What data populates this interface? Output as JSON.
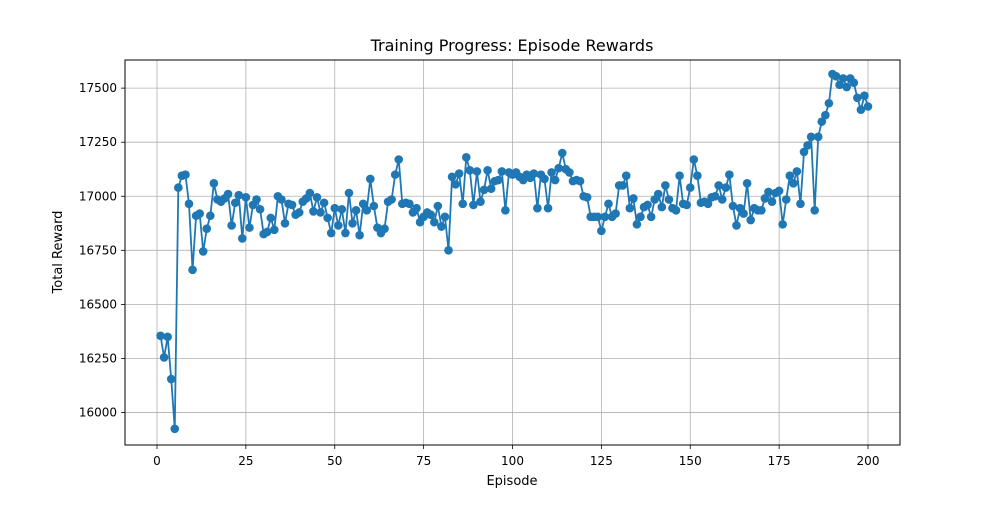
{
  "chart_data": {
    "type": "line",
    "title": "Training Progress: Episode Rewards",
    "xlabel": "Episode",
    "ylabel": "Total Reward",
    "xlim": [
      -9,
      209
    ],
    "ylim": [
      15850,
      17630
    ],
    "xticks": [
      0,
      25,
      50,
      75,
      100,
      125,
      150,
      175,
      200
    ],
    "yticks": [
      16000,
      16250,
      16500,
      16750,
      17000,
      17250,
      17500
    ],
    "grid": true,
    "line_color": "#1f77b4",
    "marker": "circle",
    "series": [
      {
        "x": [
          1,
          2,
          3,
          4,
          5,
          6,
          7,
          8,
          9,
          10,
          11,
          12,
          13,
          14,
          15,
          16,
          17,
          18,
          19,
          20,
          21,
          22,
          23,
          24,
          25,
          26,
          27,
          28,
          29,
          30,
          31,
          32,
          33,
          34,
          35,
          36,
          37,
          38,
          39,
          40,
          41,
          42,
          43,
          44,
          45,
          46,
          47,
          48,
          49,
          50,
          51,
          52,
          53,
          54,
          55,
          56,
          57,
          58,
          59,
          60,
          61,
          62,
          63,
          64,
          65,
          66,
          67,
          68,
          69,
          70,
          71,
          72,
          73,
          74,
          75,
          76,
          77,
          78,
          79,
          80,
          81,
          82,
          83,
          84,
          85,
          86,
          87,
          88,
          89,
          90,
          91,
          92,
          93,
          94,
          95,
          96,
          97,
          98,
          99,
          100,
          101,
          102,
          103,
          104,
          105,
          106,
          107,
          108,
          109,
          110,
          111,
          112,
          113,
          114,
          115,
          116,
          117,
          118,
          119,
          120,
          121,
          122,
          123,
          124,
          125,
          126,
          127,
          128,
          129,
          130,
          131,
          132,
          133,
          134,
          135,
          136,
          137,
          138,
          139,
          140,
          141,
          142,
          143,
          144,
          145,
          146,
          147,
          148,
          149,
          150,
          151,
          152,
          153,
          154,
          155,
          156,
          157,
          158,
          159,
          160,
          161,
          162,
          163,
          164,
          165,
          166,
          167,
          168,
          169,
          170,
          171,
          172,
          173,
          174,
          175,
          176,
          177,
          178,
          179,
          180,
          181,
          182,
          183,
          184,
          185,
          186,
          187,
          188,
          189,
          190,
          191,
          192,
          193,
          194,
          195,
          196,
          197,
          198,
          199,
          200
        ],
        "values": [
          16355,
          16255,
          16350,
          16155,
          15925,
          17040,
          17095,
          17100,
          16965,
          16660,
          16910,
          16920,
          16745,
          16850,
          16910,
          17060,
          16985,
          16975,
          16990,
          17010,
          16865,
          16970,
          17005,
          16805,
          16995,
          16855,
          16960,
          16985,
          16940,
          16825,
          16835,
          16900,
          16845,
          17000,
          16985,
          16875,
          16965,
          16960,
          16915,
          16925,
          16975,
          16990,
          17015,
          16930,
          16995,
          16925,
          16970,
          16900,
          16830,
          16945,
          16865,
          16940,
          16830,
          17015,
          16875,
          16935,
          16820,
          16965,
          16935,
          17080,
          16955,
          16855,
          16830,
          16850,
          16975,
          16985,
          17100,
          17170,
          16965,
          16970,
          16965,
          16925,
          16945,
          16880,
          16905,
          16925,
          16915,
          16880,
          16955,
          16860,
          16905,
          16750,
          17090,
          17055,
          17105,
          16965,
          17180,
          17120,
          16960,
          17115,
          16975,
          17030,
          17120,
          17035,
          17070,
          17075,
          17115,
          16935,
          17110,
          17100,
          17110,
          17090,
          17075,
          17100,
          17085,
          17105,
          16945,
          17100,
          17080,
          16945,
          17110,
          17075,
          17130,
          17200,
          17125,
          17110,
          17070,
          17075,
          17070,
          17000,
          16995,
          16905,
          16905,
          16905,
          16840,
          16905,
          16965,
          16905,
          16920,
          17050,
          17050,
          17095,
          16945,
          16990,
          16870,
          16905,
          16950,
          16960,
          16905,
          16985,
          17010,
          16950,
          17050,
          16985,
          16945,
          16935,
          17095,
          16965,
          16960,
          17040,
          17170,
          17095,
          16970,
          16975,
          16965,
          16995,
          17000,
          17050,
          16985,
          17040,
          17100,
          16955,
          16865,
          16945,
          16920,
          17060,
          16890,
          16945,
          16935,
          16935,
          16990,
          17020,
          16975,
          17015,
          17025,
          16870,
          16985,
          17095,
          17060,
          17115,
          16965,
          17205,
          17235,
          17275,
          16935,
          17275,
          17345,
          17375,
          17430,
          17565,
          17555,
          17515,
          17545,
          17505,
          17545,
          17525,
          17455,
          17400,
          17465,
          17415
        ]
      }
    ]
  }
}
